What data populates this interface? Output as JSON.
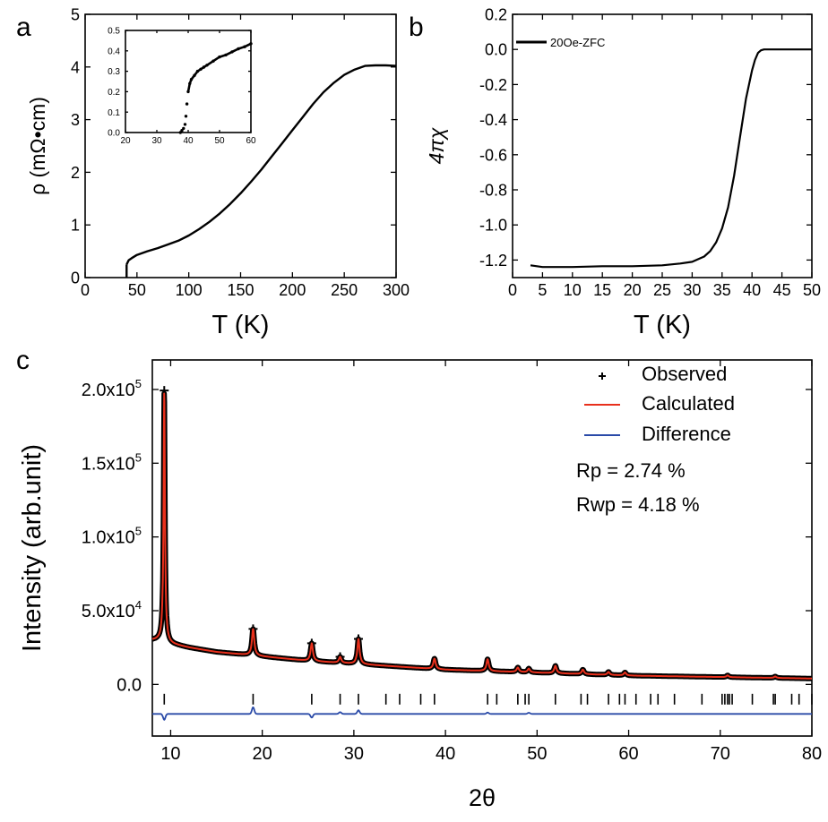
{
  "figure": {
    "panels": [
      "a",
      "b",
      "c"
    ]
  },
  "chart_data": [
    {
      "id": "a",
      "type": "line",
      "panel_label": "a",
      "xlabel": "T (K)",
      "ylabel": "ρ (mΩ•cm)",
      "xlim": [
        0,
        300
      ],
      "ylim": [
        0,
        5
      ],
      "xticks": [
        0,
        50,
        100,
        150,
        200,
        250,
        300
      ],
      "yticks": [
        0,
        1,
        2,
        3,
        4,
        5
      ],
      "series": [
        {
          "color": "#000000",
          "x": [
            40,
            42,
            45,
            50,
            60,
            70,
            80,
            90,
            100,
            110,
            120,
            130,
            140,
            150,
            160,
            170,
            180,
            190,
            200,
            210,
            220,
            230,
            240,
            250,
            260,
            270,
            280,
            290,
            300
          ],
          "y": [
            0.25,
            0.33,
            0.37,
            0.43,
            0.5,
            0.56,
            0.63,
            0.7,
            0.8,
            0.92,
            1.06,
            1.22,
            1.4,
            1.6,
            1.82,
            2.05,
            2.3,
            2.55,
            2.8,
            3.05,
            3.3,
            3.52,
            3.7,
            3.85,
            3.95,
            4.02,
            4.03,
            4.03,
            4.02
          ]
        }
      ],
      "inset": {
        "type": "scatter",
        "xlim": [
          20,
          60
        ],
        "ylim": [
          0.0,
          0.5
        ],
        "xticks": [
          20,
          30,
          40,
          50,
          60
        ],
        "yticks": [
          0.0,
          0.1,
          0.2,
          0.3,
          0.4,
          0.5
        ],
        "x": [
          37.5,
          38,
          38.5,
          39,
          39.3,
          39.6,
          40,
          40.5,
          41,
          42,
          43,
          44,
          45,
          46,
          48,
          50,
          52,
          54,
          56,
          58,
          60
        ],
        "y": [
          0.0,
          0.01,
          0.02,
          0.04,
          0.08,
          0.14,
          0.2,
          0.24,
          0.26,
          0.28,
          0.3,
          0.31,
          0.32,
          0.33,
          0.35,
          0.37,
          0.38,
          0.395,
          0.41,
          0.42,
          0.435
        ]
      }
    },
    {
      "id": "b",
      "type": "line",
      "panel_label": "b",
      "xlabel": "T (K)",
      "ylabel": "4πχ",
      "xlim": [
        0,
        50
      ],
      "ylim": [
        -1.3,
        0.2
      ],
      "xticks": [
        0,
        5,
        10,
        15,
        20,
        25,
        30,
        35,
        40,
        45,
        50
      ],
      "yticks": [
        0.2,
        0.0,
        -0.2,
        -0.4,
        -0.6,
        -0.8,
        -1.0,
        -1.2
      ],
      "series": [
        {
          "name": "20Oe-ZFC",
          "color": "#000000",
          "x": [
            3,
            5,
            10,
            15,
            20,
            25,
            28,
            30,
            32,
            33,
            34,
            35,
            36,
            37,
            38,
            39,
            40,
            40.5,
            41,
            41.5,
            42,
            43,
            45,
            50
          ],
          "y": [
            -1.23,
            -1.24,
            -1.24,
            -1.235,
            -1.235,
            -1.23,
            -1.22,
            -1.21,
            -1.18,
            -1.15,
            -1.1,
            -1.02,
            -0.9,
            -0.72,
            -0.5,
            -0.28,
            -0.12,
            -0.06,
            -0.02,
            -0.005,
            0.0,
            0.0,
            0.0,
            0.0
          ]
        }
      ],
      "legend_placement": "top-left"
    },
    {
      "id": "c",
      "type": "line",
      "panel_label": "c",
      "xlabel": "2θ",
      "ylabel": "Intensity (arb.unit)",
      "xlim": [
        8,
        80
      ],
      "ylim": [
        -35000,
        220000
      ],
      "xticks": [
        10,
        20,
        30,
        40,
        50,
        60,
        70,
        80
      ],
      "yticks": [
        {
          "value": 0,
          "label": "0.0"
        },
        {
          "value": 50000,
          "label": "5.0x10",
          "exp": "4"
        },
        {
          "value": 100000,
          "label": "1.0x10",
          "exp": "5"
        },
        {
          "value": 150000,
          "label": "1.5x10",
          "exp": "5"
        },
        {
          "value": 200000,
          "label": "2.0x10",
          "exp": "5"
        }
      ],
      "legend": [
        {
          "name": "Observed",
          "marker": "+",
          "color": "#000000"
        },
        {
          "name": "Calculated",
          "color": "#e8301c"
        },
        {
          "name": "Difference",
          "color": "#2a4aa8"
        }
      ],
      "legend_placement": "top-right",
      "annotations": [
        "Rp = 2.74 %",
        "Rwp = 4.18 %"
      ],
      "background": {
        "x": [
          8,
          9,
          10,
          12,
          15,
          20,
          25,
          30,
          35,
          40,
          45,
          50,
          55,
          60,
          65,
          70,
          75,
          80
        ],
        "y": [
          30000,
          30000,
          27500,
          25000,
          22000,
          19000,
          16000,
          14000,
          12000,
          10000,
          9000,
          8000,
          7000,
          6000,
          5500,
          5000,
          4500,
          4000
        ]
      },
      "peaks": [
        {
          "x": 9.3,
          "height": 170000
        },
        {
          "x": 19.0,
          "height": 18000
        },
        {
          "x": 25.4,
          "height": 12000
        },
        {
          "x": 28.5,
          "height": 4000
        },
        {
          "x": 30.5,
          "height": 17000
        },
        {
          "x": 38.8,
          "height": 7000
        },
        {
          "x": 44.6,
          "height": 8000
        },
        {
          "x": 47.9,
          "height": 3000
        },
        {
          "x": 49.1,
          "height": 2500
        },
        {
          "x": 52.0,
          "height": 5000
        },
        {
          "x": 55.0,
          "height": 3000
        },
        {
          "x": 57.8,
          "height": 2000
        },
        {
          "x": 59.6,
          "height": 2000
        },
        {
          "x": 70.8,
          "height": 1200
        },
        {
          "x": 76.0,
          "height": 1000
        }
      ],
      "bragg_positions": [
        9.3,
        19.0,
        25.4,
        28.5,
        30.5,
        33.5,
        35.0,
        37.3,
        38.8,
        44.6,
        45.6,
        47.9,
        48.7,
        49.1,
        52.0,
        54.8,
        55.5,
        57.8,
        59.0,
        59.6,
        60.8,
        62.4,
        63.2,
        65.0,
        68.0,
        70.2,
        70.5,
        70.8,
        71.0,
        71.3,
        73.5,
        75.8,
        76.0,
        77.8,
        78.6,
        80.0
      ],
      "bragg_level": -10000,
      "difference_offset": -20000
    }
  ]
}
